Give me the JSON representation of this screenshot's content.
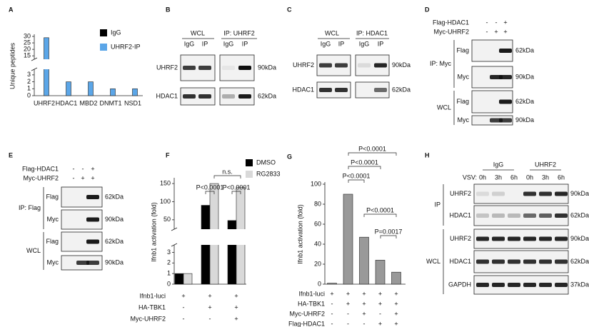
{
  "letters": [
    "A",
    "B",
    "C",
    "D",
    "E",
    "F",
    "G",
    "H"
  ],
  "chart_data": [
    {
      "type": "bar",
      "ylabel": "Unique peptides",
      "categories": [
        "UHRF2",
        "HDAC1",
        "MBD2",
        "DNMT1",
        "NSD1"
      ],
      "series": [
        {
          "name": "IgG",
          "color": "#000000",
          "values": [
            0,
            0,
            0,
            0,
            0
          ]
        },
        {
          "name": "UHRF2-IP",
          "color": "#5ba6e8",
          "values": [
            29,
            2,
            2,
            1,
            1
          ]
        }
      ],
      "ylim": [
        0,
        30
      ],
      "yticks": [
        0,
        1,
        2,
        3,
        15,
        20,
        25,
        30
      ],
      "axis_break": [
        3.5,
        14
      ],
      "legend": "upper right"
    },
    {
      "type": "bar",
      "ylabel": "Ifnb1 activation (fold)",
      "categories": [
        null,
        null,
        null
      ],
      "series": [
        {
          "name": "DMSO",
          "color": "#000000",
          "values": [
            1,
            90,
            48
          ]
        },
        {
          "name": "RG2833",
          "color": "#d9d9d9",
          "values": [
            1,
            150,
            140
          ]
        }
      ],
      "ylim": [
        0,
        160
      ],
      "yticks": [
        0,
        1,
        2,
        3,
        50,
        100,
        150
      ],
      "axis_break": [
        3.5,
        30
      ],
      "legend": "upper right",
      "annotations": [
        "P<0.0001",
        "n.s.",
        "P<0.0001"
      ],
      "conditions": [
        {
          "name": "Ifnb1-luci",
          "signs": [
            "+",
            "+",
            "+"
          ]
        },
        {
          "name": "HA-TBK1",
          "signs": [
            "-",
            "+",
            "+"
          ]
        },
        {
          "name": "Myc-UHRF2",
          "signs": [
            "-",
            "-",
            "+"
          ]
        }
      ]
    },
    {
      "type": "bar",
      "ylabel": "Ifnb1 activation (fold)",
      "categories": [
        null,
        null,
        null,
        null,
        null
      ],
      "color": "#999999",
      "series": [
        {
          "values": [
            1,
            90,
            47,
            24,
            12
          ]
        }
      ],
      "ylim": [
        0,
        100
      ],
      "yticks": [
        0,
        20,
        40,
        60,
        80,
        100
      ],
      "annotations": [
        "P<0.0001",
        "P<0.0001",
        "P<0.0001",
        "P<0.0001",
        "P=0.0017"
      ],
      "conditions": [
        {
          "name": "Ifnb1-luci",
          "signs": [
            "+",
            "+",
            "+",
            "+",
            "+"
          ]
        },
        {
          "name": "HA-TBK1",
          "signs": [
            "-",
            "+",
            "+",
            "+",
            "+"
          ]
        },
        {
          "name": "Myc-UHRF2",
          "signs": [
            "-",
            "-",
            "+",
            "-",
            "+"
          ]
        },
        {
          "name": "Flag-HDAC1",
          "signs": [
            "-",
            "-",
            "-",
            "+",
            "+"
          ]
        }
      ]
    }
  ],
  "blots": {
    "B": {
      "headers": [
        "WCL",
        "IP: UHRF2"
      ],
      "lanes": [
        "IgG",
        "IP",
        "IgG",
        "IP"
      ],
      "rows": [
        "UHRF2",
        "HDAC1"
      ],
      "sizes": [
        "90kDa",
        "62kDa"
      ]
    },
    "C": {
      "headers": [
        "WCL",
        "IP: HDAC1"
      ],
      "lanes": [
        "IgG",
        "IP",
        "IgG",
        "IP"
      ],
      "rows": [
        "UHRF2",
        "HDAC1"
      ],
      "sizes": [
        "90kDa",
        "62kDa"
      ]
    },
    "D": {
      "conditions": [
        {
          "name": "Flag-HDAC1",
          "signs": [
            "-",
            "-",
            "+"
          ]
        },
        {
          "name": "Myc-UHRF2",
          "signs": [
            "-",
            "+",
            "+"
          ]
        }
      ],
      "groups": [
        {
          "name": "IP: Myc",
          "rows": [
            "Flag",
            "Myc"
          ],
          "sizes": [
            "62kDa",
            "90kDa"
          ]
        },
        {
          "name": "WCL",
          "rows": [
            "Flag",
            "Myc"
          ],
          "sizes": [
            "62kDa",
            "90kDa"
          ]
        }
      ]
    },
    "E": {
      "conditions": [
        {
          "name": "Flag-HDAC1",
          "signs": [
            "-",
            "-",
            "+"
          ]
        },
        {
          "name": "Myc-UHRF2",
          "signs": [
            "-",
            "+",
            "+"
          ]
        }
      ],
      "groups": [
        {
          "name": "IP: Flag",
          "rows": [
            "Flag",
            "Myc"
          ],
          "sizes": [
            "62kDa",
            "90kDa"
          ]
        },
        {
          "name": "WCL",
          "rows": [
            "Flag",
            "Myc"
          ],
          "sizes": [
            "62kDa",
            "90kDa"
          ]
        }
      ]
    },
    "H": {
      "headers": [
        "IgG",
        "UHRF2"
      ],
      "time_label": "VSV:",
      "lanes": [
        "0h",
        "3h",
        "6h",
        "0h",
        "3h",
        "6h"
      ],
      "groups": [
        {
          "name": "IP",
          "rows": [
            "UHRF2",
            "HDAC1"
          ],
          "sizes": [
            "90kDa",
            "62kDa"
          ]
        },
        {
          "name": "WCL",
          "rows": [
            "UHRF2",
            "HDAC1",
            "GAPDH"
          ],
          "sizes": [
            "90kDa",
            "62kDa",
            "37kDa"
          ]
        }
      ]
    }
  }
}
